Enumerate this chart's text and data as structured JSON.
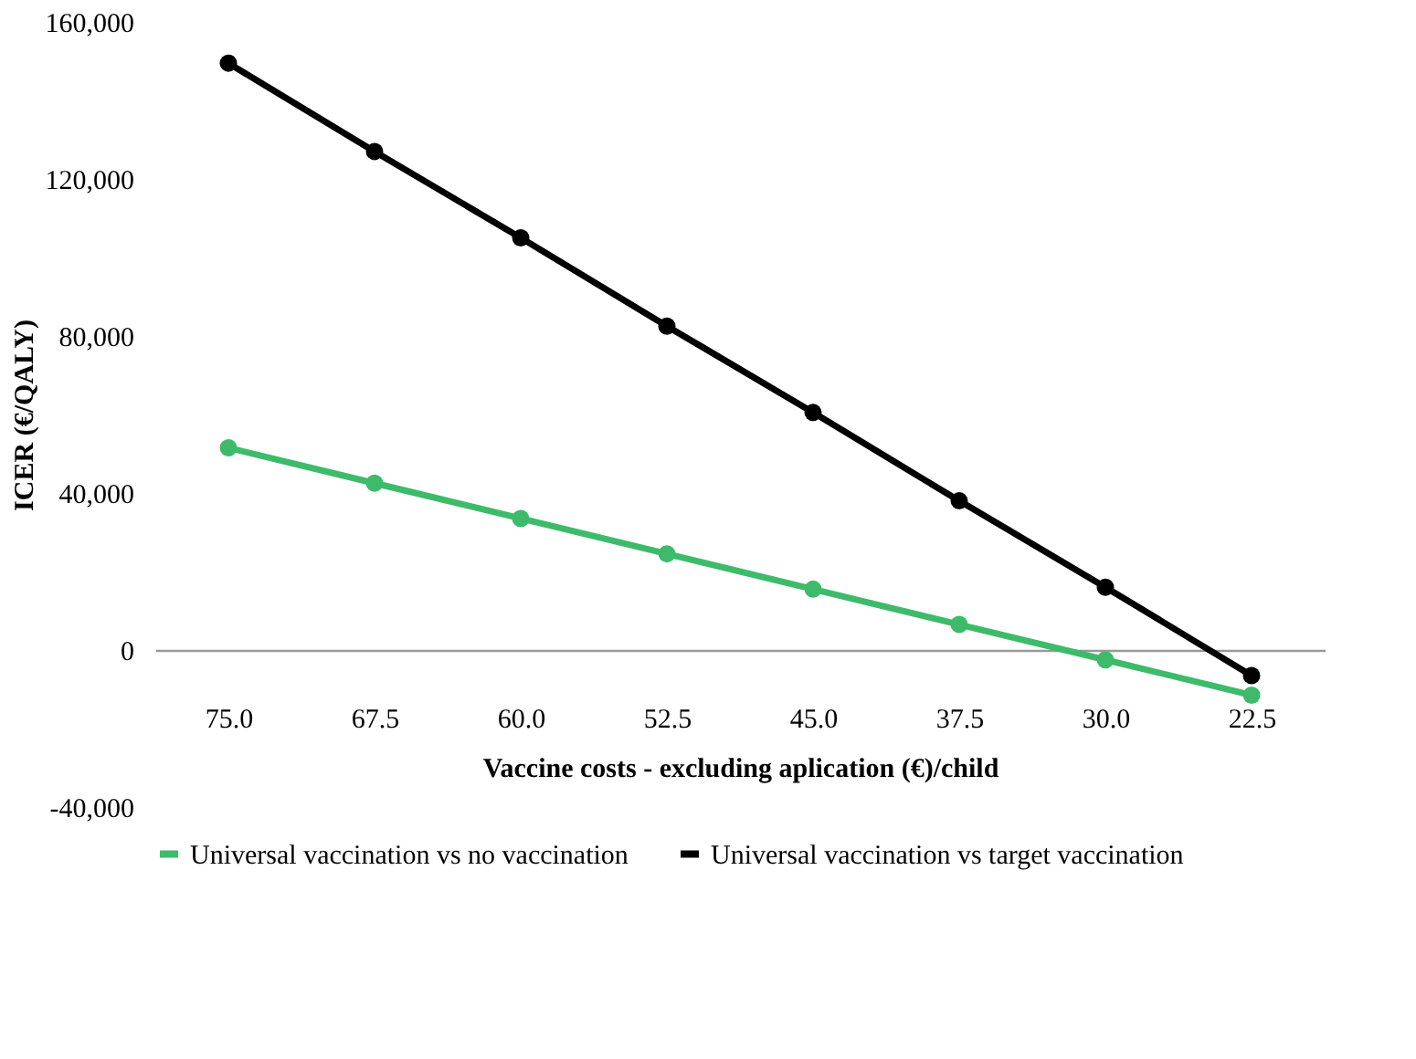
{
  "chart_data": {
    "type": "line",
    "xlabel": "Vaccine costs - excluding aplication (€)/child",
    "ylabel": "ICER (€/QALY)",
    "categories": [
      "75.0",
      "67.5",
      "60.0",
      "52.5",
      "45.0",
      "37.5",
      "30.0",
      "22.5"
    ],
    "series": [
      {
        "name": "Universal vaccination vs no vaccination",
        "color": "#3dbb6a",
        "values": [
          51500,
          42500,
          33500,
          24500,
          15500,
          6500,
          -2500,
          -11500
        ]
      },
      {
        "name": "Universal vaccination vs target vaccination",
        "color": "#000000",
        "values": [
          149500,
          127000,
          105000,
          82500,
          60500,
          38000,
          16000,
          -6500
        ]
      }
    ],
    "ylim": [
      -40000,
      160000
    ],
    "yticks": [
      {
        "value": -40000,
        "label": "-40,000"
      },
      0,
      {
        "value": 40000,
        "label": "40,000"
      },
      {
        "value": 80000,
        "label": "80,000"
      },
      {
        "value": 120000,
        "label": "120,000"
      },
      {
        "value": 160000,
        "label": "160,000"
      }
    ],
    "grid": false,
    "legend": "bottom",
    "marker": "circle",
    "line_style": "solid"
  }
}
